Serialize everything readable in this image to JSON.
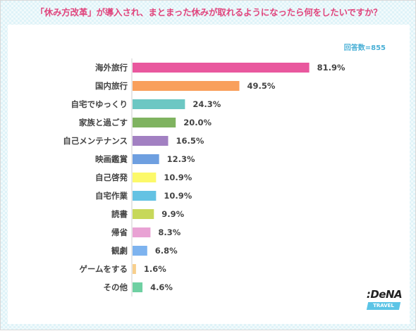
{
  "header": {
    "title": "「休み方改革」が導入され、まとまった休みが取れるようになったら何をしたいですか？",
    "respondents": "回答数=855"
  },
  "logo": {
    "brand": ":DeNA",
    "sub": "TRAVEL"
  },
  "chart_data": {
    "type": "bar",
    "orientation": "horizontal",
    "categories": [
      "海外旅行",
      "国内旅行",
      "自宅でゆっくり",
      "家族と過ごす",
      "自己メンテナンス",
      "映画鑑賞",
      "自己啓発",
      "自宅作業",
      "読書",
      "帰省",
      "観劇",
      "ゲームをする",
      "その他"
    ],
    "values": [
      81.9,
      49.5,
      24.3,
      20.0,
      16.5,
      12.3,
      10.9,
      10.9,
      9.9,
      8.3,
      6.8,
      1.6,
      4.6
    ],
    "value_labels": [
      "81.9%",
      "49.5%",
      "24.3%",
      "20.0%",
      "16.5%",
      "12.3%",
      "10.9%",
      "10.9%",
      "9.9%",
      "8.3%",
      "6.8%",
      "1.6%",
      "4.6%"
    ],
    "colors": [
      "#e9589e",
      "#f9a05c",
      "#6cc7c3",
      "#7fb360",
      "#a280c2",
      "#6e9fe0",
      "#fcf96a",
      "#64c2e3",
      "#c7d85a",
      "#e9a2d4",
      "#7db3ef",
      "#f8cf8c",
      "#6fd0a2"
    ],
    "xlim": [
      0,
      100
    ],
    "grid": false,
    "legend": "none"
  }
}
